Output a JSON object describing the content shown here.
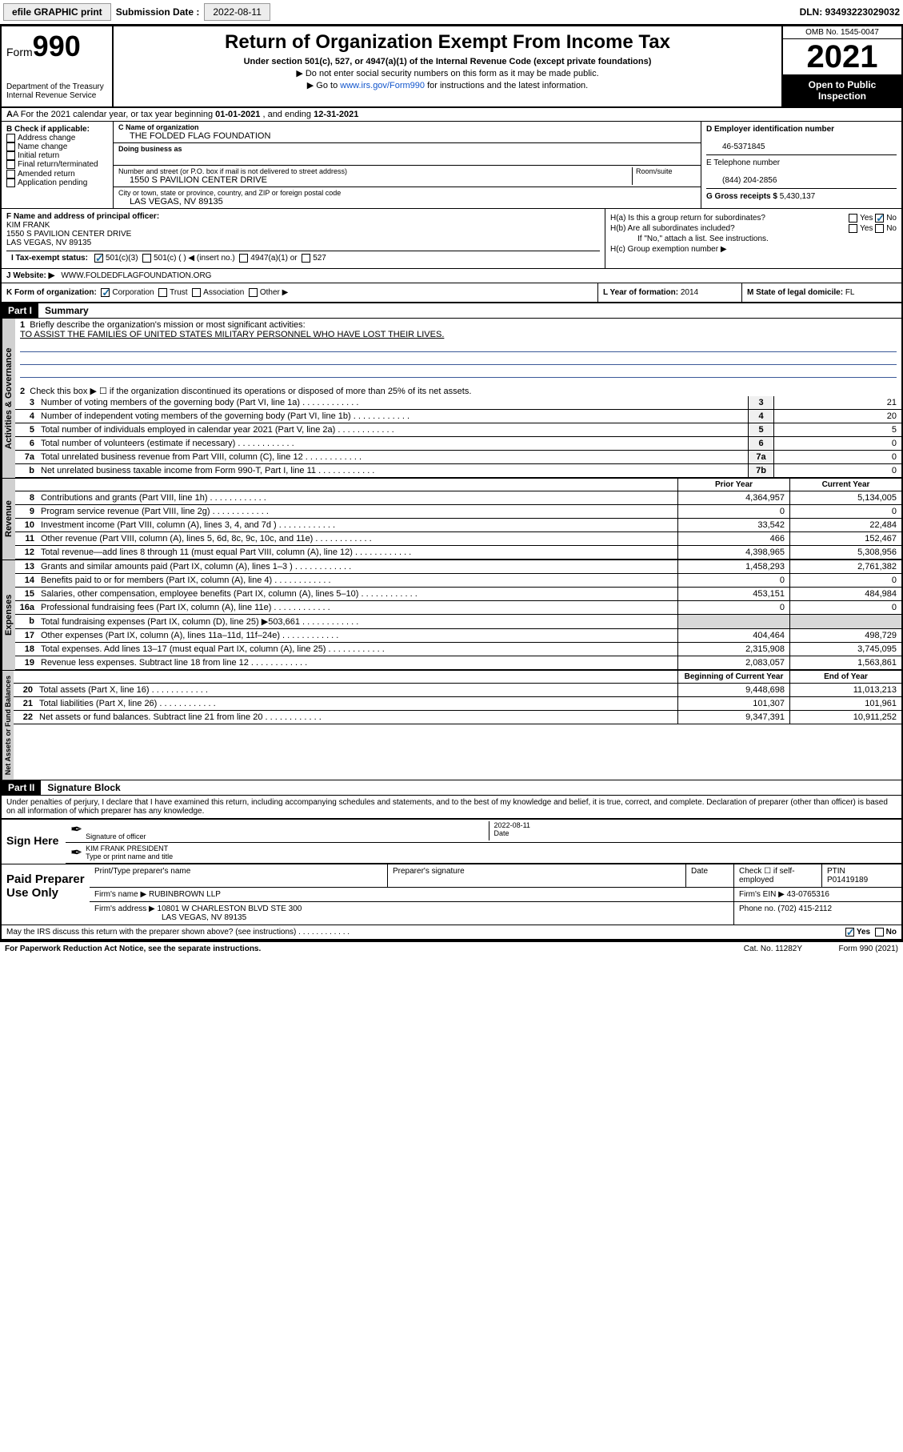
{
  "topbar": {
    "efile": "efile GRAPHIC print",
    "sub_label": "Submission Date :",
    "sub_date": "2022-08-11",
    "dln": "DLN: 93493223029032"
  },
  "header": {
    "form_prefix": "Form",
    "form_num": "990",
    "dept": "Department of the Treasury\nInternal Revenue Service",
    "title": "Return of Organization Exempt From Income Tax",
    "subtitle": "Under section 501(c), 527, or 4947(a)(1) of the Internal Revenue Code (except private foundations)",
    "note1": "▶ Do not enter social security numbers on this form as it may be made public.",
    "note2_pre": "▶ Go to ",
    "note2_link": "www.irs.gov/Form990",
    "note2_post": " for instructions and the latest information.",
    "omb": "OMB No. 1545-0047",
    "year": "2021",
    "inspect": "Open to Public Inspection"
  },
  "rowA": {
    "text_pre": "A For the 2021 calendar year, or tax year beginning ",
    "begin": "01-01-2021",
    "mid": " , and ending ",
    "end": "12-31-2021"
  },
  "colB": {
    "label": "B Check if applicable:",
    "items": [
      "Address change",
      "Name change",
      "Initial return",
      "Final return/terminated",
      "Amended return",
      "Application pending"
    ]
  },
  "colC": {
    "name_lbl": "C Name of organization",
    "name": "THE FOLDED FLAG FOUNDATION",
    "dba_lbl": "Doing business as",
    "addr_lbl": "Number and street (or P.O. box if mail is not delivered to street address)",
    "room_lbl": "Room/suite",
    "addr": "1550 S PAVILION CENTER DRIVE",
    "city_lbl": "City or town, state or province, country, and ZIP or foreign postal code",
    "city": "LAS VEGAS, NV  89135"
  },
  "colD": {
    "ein_lbl": "D Employer identification number",
    "ein": "46-5371845",
    "phone_lbl": "E Telephone number",
    "phone": "(844) 204-2856",
    "gross_lbl": "G Gross receipts $",
    "gross": "5,430,137"
  },
  "colF": {
    "lbl": "F Name and address of principal officer:",
    "name": "KIM FRANK",
    "addr1": "1550 S PAVILION CENTER DRIVE",
    "addr2": "LAS VEGAS, NV  89135"
  },
  "colH": {
    "ha": "H(a)  Is this a group return for subordinates?",
    "hb": "H(b)  Are all subordinates included?",
    "hb_note": "If \"No,\" attach a list. See instructions.",
    "hc": "H(c)  Group exemption number ▶"
  },
  "rowI": {
    "lbl": "I  Tax-exempt status:",
    "opts": [
      "501(c)(3)",
      "501(c) (  ) ◀ (insert no.)",
      "4947(a)(1) or",
      "527"
    ]
  },
  "rowJ": {
    "lbl": "J  Website: ▶",
    "val": "WWW.FOLDEDFLAGFOUNDATION.ORG"
  },
  "rowK": {
    "k_lbl": "K Form of organization:",
    "k_opts": [
      "Corporation",
      "Trust",
      "Association",
      "Other ▶"
    ],
    "l_lbl": "L Year of formation:",
    "l_val": "2014",
    "m_lbl": "M State of legal domicile:",
    "m_val": "FL"
  },
  "part1": {
    "hdr": "Part I",
    "title": "Summary",
    "l1": "Briefly describe the organization's mission or most significant activities:",
    "l1_val": "TO ASSIST THE FAMILIES OF UNITED STATES MILITARY PERSONNEL WHO HAVE LOST THEIR LIVES.",
    "l2": "Check this box ▶ ☐  if the organization discontinued its operations or disposed of more than 25% of its net assets.",
    "tab_gov": "Activities & Governance",
    "tab_rev": "Revenue",
    "tab_exp": "Expenses",
    "tab_net": "Net Assets or Fund Balances",
    "col_prior": "Prior Year",
    "col_curr": "Current Year",
    "col_begin": "Beginning of Current Year",
    "col_end": "End of Year",
    "lines_gov": [
      {
        "n": "3",
        "d": "Number of voting members of the governing body (Part VI, line 1a)",
        "lbl": "3",
        "v": "21"
      },
      {
        "n": "4",
        "d": "Number of independent voting members of the governing body (Part VI, line 1b)",
        "lbl": "4",
        "v": "20"
      },
      {
        "n": "5",
        "d": "Total number of individuals employed in calendar year 2021 (Part V, line 2a)",
        "lbl": "5",
        "v": "5"
      },
      {
        "n": "6",
        "d": "Total number of volunteers (estimate if necessary)",
        "lbl": "6",
        "v": "0"
      },
      {
        "n": "7a",
        "d": "Total unrelated business revenue from Part VIII, column (C), line 12",
        "lbl": "7a",
        "v": "0"
      },
      {
        "n": "b",
        "d": "Net unrelated business taxable income from Form 990-T, Part I, line 11",
        "lbl": "7b",
        "v": "0"
      }
    ],
    "lines_rev": [
      {
        "n": "8",
        "d": "Contributions and grants (Part VIII, line 1h)",
        "p": "4,364,957",
        "c": "5,134,005"
      },
      {
        "n": "9",
        "d": "Program service revenue (Part VIII, line 2g)",
        "p": "0",
        "c": "0"
      },
      {
        "n": "10",
        "d": "Investment income (Part VIII, column (A), lines 3, 4, and 7d )",
        "p": "33,542",
        "c": "22,484"
      },
      {
        "n": "11",
        "d": "Other revenue (Part VIII, column (A), lines 5, 6d, 8c, 9c, 10c, and 11e)",
        "p": "466",
        "c": "152,467"
      },
      {
        "n": "12",
        "d": "Total revenue—add lines 8 through 11 (must equal Part VIII, column (A), line 12)",
        "p": "4,398,965",
        "c": "5,308,956"
      }
    ],
    "lines_exp": [
      {
        "n": "13",
        "d": "Grants and similar amounts paid (Part IX, column (A), lines 1–3 )",
        "p": "1,458,293",
        "c": "2,761,382"
      },
      {
        "n": "14",
        "d": "Benefits paid to or for members (Part IX, column (A), line 4)",
        "p": "0",
        "c": "0"
      },
      {
        "n": "15",
        "d": "Salaries, other compensation, employee benefits (Part IX, column (A), lines 5–10)",
        "p": "453,151",
        "c": "484,984"
      },
      {
        "n": "16a",
        "d": "Professional fundraising fees (Part IX, column (A), line 11e)",
        "p": "0",
        "c": "0"
      },
      {
        "n": "b",
        "d": "Total fundraising expenses (Part IX, column (D), line 25) ▶503,661",
        "p": "",
        "c": "",
        "grey": true
      },
      {
        "n": "17",
        "d": "Other expenses (Part IX, column (A), lines 11a–11d, 11f–24e)",
        "p": "404,464",
        "c": "498,729"
      },
      {
        "n": "18",
        "d": "Total expenses. Add lines 13–17 (must equal Part IX, column (A), line 25)",
        "p": "2,315,908",
        "c": "3,745,095"
      },
      {
        "n": "19",
        "d": "Revenue less expenses. Subtract line 18 from line 12",
        "p": "2,083,057",
        "c": "1,563,861"
      }
    ],
    "lines_net": [
      {
        "n": "20",
        "d": "Total assets (Part X, line 16)",
        "p": "9,448,698",
        "c": "11,013,213"
      },
      {
        "n": "21",
        "d": "Total liabilities (Part X, line 26)",
        "p": "101,307",
        "c": "101,961"
      },
      {
        "n": "22",
        "d": "Net assets or fund balances. Subtract line 21 from line 20",
        "p": "9,347,391",
        "c": "10,911,252"
      }
    ]
  },
  "part2": {
    "hdr": "Part II",
    "title": "Signature Block",
    "decl": "Under penalties of perjury, I declare that I have examined this return, including accompanying schedules and statements, and to the best of my knowledge and belief, it is true, correct, and complete. Declaration of preparer (other than officer) is based on all information of which preparer has any knowledge.",
    "sign_here": "Sign Here",
    "sig_officer": "Signature of officer",
    "sig_date": "Date",
    "sig_date_val": "2022-08-11",
    "sig_name": "KIM FRANK  PRESIDENT",
    "sig_name_lbl": "Type or print name and title",
    "paid": "Paid Preparer Use Only",
    "prep_name_lbl": "Print/Type preparer's name",
    "prep_sig_lbl": "Preparer's signature",
    "prep_date_lbl": "Date",
    "prep_check": "Check ☐ if self-employed",
    "ptin_lbl": "PTIN",
    "ptin": "P01419189",
    "firm_name_lbl": "Firm's name    ▶",
    "firm_name": "RUBINBROWN LLP",
    "firm_ein_lbl": "Firm's EIN ▶",
    "firm_ein": "43-0765316",
    "firm_addr_lbl": "Firm's address ▶",
    "firm_addr1": "10801 W CHARLESTON BLVD STE 300",
    "firm_addr2": "LAS VEGAS, NV  89135",
    "firm_phone_lbl": "Phone no.",
    "firm_phone": "(702) 415-2112",
    "may_irs": "May the IRS discuss this return with the preparer shown above? (see instructions)",
    "paperwork": "For Paperwork Reduction Act Notice, see the separate instructions.",
    "cat": "Cat. No. 11282Y",
    "form_foot": "Form 990 (2021)"
  },
  "yesno": {
    "yes": "Yes",
    "no": "No"
  }
}
